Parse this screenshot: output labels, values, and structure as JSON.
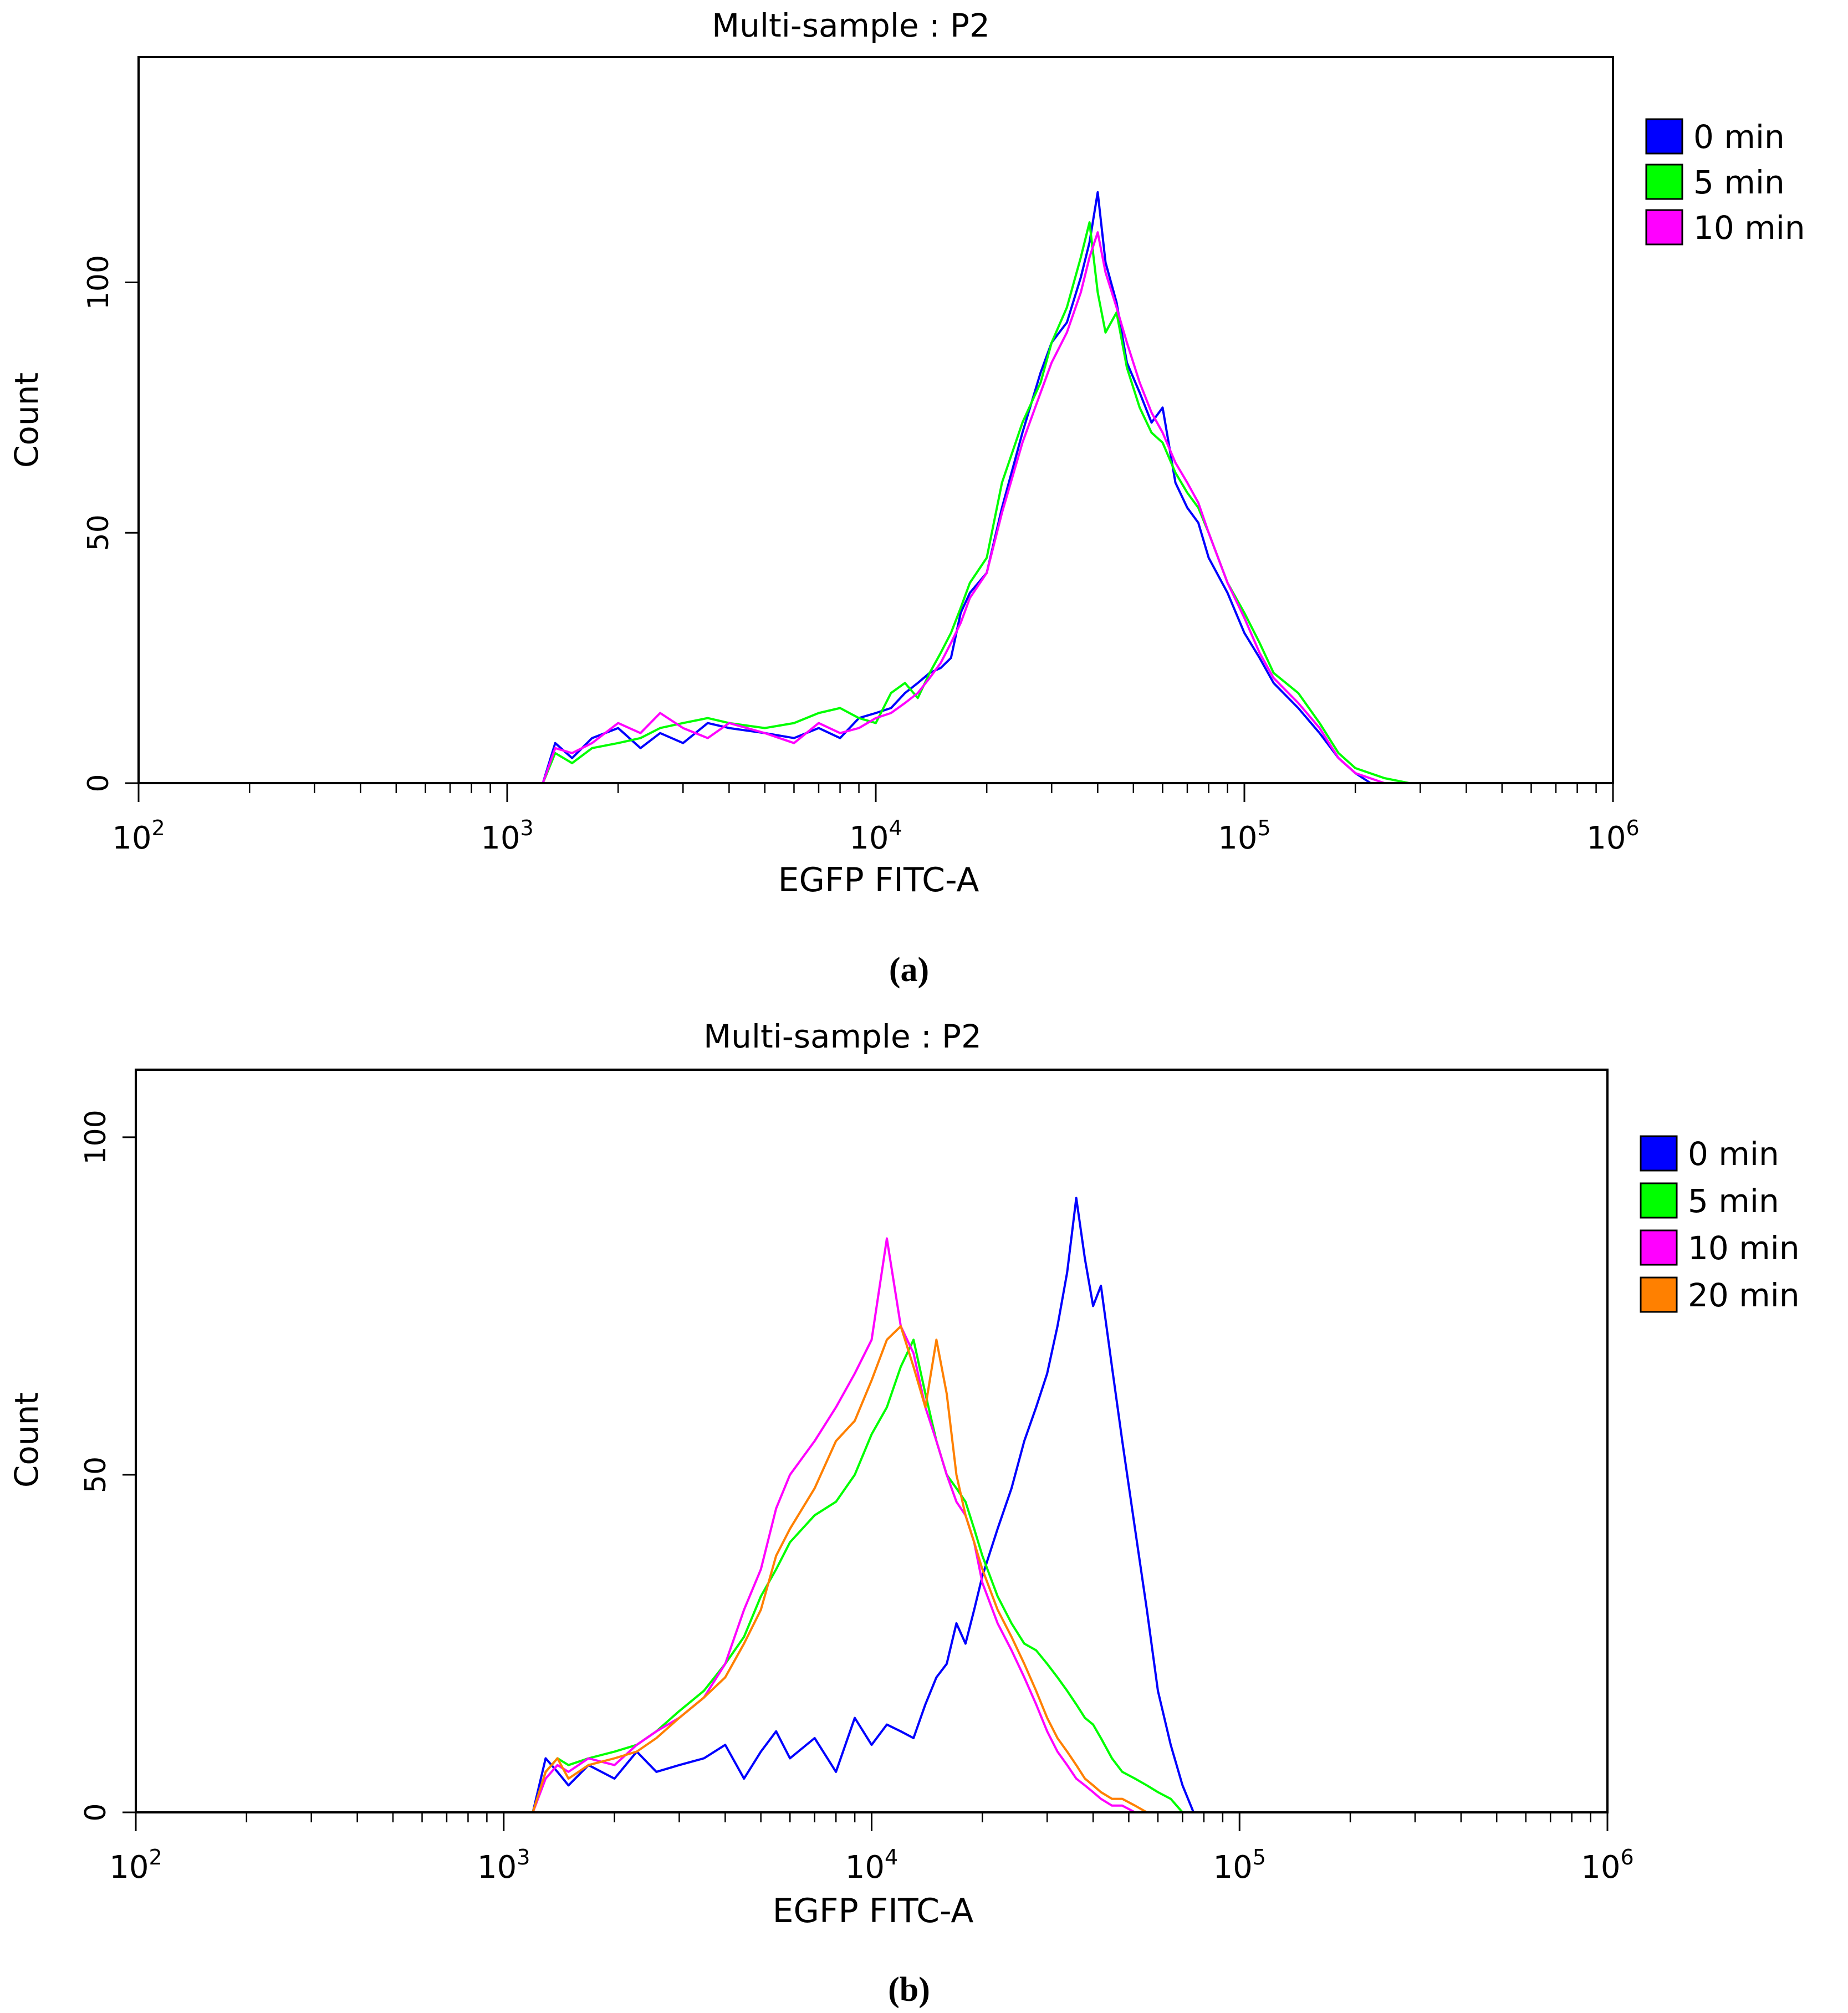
{
  "chart_data": [
    {
      "type": "line",
      "panel_label": "(a)",
      "title": "Multi-sample : P2",
      "xlabel": "EGFP FITC-A",
      "ylabel": "Count",
      "xscale": "log",
      "xlim": [
        100,
        1000000
      ],
      "ylim": [
        0,
        145
      ],
      "xticks": [
        {
          "value": 100,
          "base": "10",
          "exp": "2"
        },
        {
          "value": 1000,
          "base": "10",
          "exp": "3"
        },
        {
          "value": 10000,
          "base": "10",
          "exp": "4"
        },
        {
          "value": 100000,
          "base": "10",
          "exp": "5"
        },
        {
          "value": 1000000,
          "base": "10",
          "exp": "6"
        }
      ],
      "yticks": [
        {
          "value": 0,
          "label": "0"
        },
        {
          "value": 50,
          "label": "50"
        },
        {
          "value": 100,
          "label": "100"
        }
      ],
      "legend": "top-right",
      "series": [
        {
          "name": "0 min",
          "color": "#0000ff",
          "x": [
            1250,
            1350,
            1500,
            1700,
            2000,
            2300,
            2600,
            3000,
            3500,
            4000,
            5000,
            6000,
            7000,
            8000,
            9000,
            10000,
            11000,
            12000,
            13000,
            14000,
            15000,
            16000,
            17000,
            18000,
            20000,
            22000,
            25000,
            28000,
            30000,
            33000,
            36000,
            38000,
            40000,
            42000,
            45000,
            48000,
            52000,
            56000,
            60000,
            65000,
            70000,
            75000,
            80000,
            90000,
            100000,
            110000,
            120000,
            140000,
            160000,
            180000,
            200000,
            220000
          ],
          "y": [
            0,
            8,
            5,
            9,
            11,
            7,
            10,
            8,
            12,
            11,
            10,
            9,
            11,
            9,
            13,
            14,
            15,
            18,
            20,
            22,
            23,
            25,
            34,
            38,
            42,
            55,
            70,
            82,
            88,
            92,
            101,
            108,
            118,
            104,
            96,
            84,
            78,
            72,
            75,
            60,
            55,
            52,
            45,
            38,
            30,
            25,
            20,
            15,
            10,
            5,
            2,
            0
          ]
        },
        {
          "name": "5 min",
          "color": "#00ff00",
          "x": [
            1250,
            1350,
            1500,
            1700,
            2000,
            2300,
            2600,
            3000,
            3500,
            4000,
            5000,
            6000,
            7000,
            8000,
            9000,
            10000,
            11000,
            12000,
            13000,
            14000,
            15000,
            16000,
            17000,
            18000,
            20000,
            22000,
            25000,
            28000,
            30000,
            33000,
            36000,
            38000,
            40000,
            42000,
            45000,
            48000,
            52000,
            56000,
            60000,
            65000,
            70000,
            75000,
            80000,
            90000,
            100000,
            110000,
            120000,
            140000,
            160000,
            180000,
            200000,
            240000,
            280000
          ],
          "y": [
            0,
            6,
            4,
            7,
            8,
            9,
            11,
            12,
            13,
            12,
            11,
            12,
            14,
            15,
            13,
            12,
            18,
            20,
            17,
            22,
            26,
            30,
            35,
            40,
            45,
            60,
            72,
            80,
            88,
            95,
            105,
            112,
            98,
            90,
            94,
            83,
            75,
            70,
            68,
            62,
            58,
            55,
            50,
            40,
            34,
            28,
            22,
            18,
            12,
            6,
            3,
            1,
            0
          ]
        },
        {
          "name": "10 min",
          "color": "#ff00ff",
          "x": [
            1250,
            1350,
            1500,
            1700,
            2000,
            2300,
            2600,
            3000,
            3500,
            4000,
            5000,
            6000,
            7000,
            8000,
            9000,
            10000,
            11000,
            12000,
            13000,
            14000,
            15000,
            16000,
            17000,
            18000,
            20000,
            22000,
            25000,
            28000,
            30000,
            33000,
            36000,
            38000,
            40000,
            42000,
            45000,
            48000,
            52000,
            56000,
            60000,
            65000,
            70000,
            75000,
            80000,
            90000,
            100000,
            110000,
            120000,
            140000,
            160000,
            180000,
            200000,
            240000
          ],
          "y": [
            0,
            7,
            6,
            8,
            12,
            10,
            14,
            11,
            9,
            12,
            10,
            8,
            12,
            10,
            11,
            13,
            14,
            16,
            18,
            21,
            24,
            28,
            32,
            37,
            42,
            54,
            68,
            78,
            84,
            90,
            98,
            105,
            110,
            102,
            95,
            88,
            80,
            74,
            70,
            64,
            60,
            56,
            50,
            40,
            33,
            26,
            21,
            16,
            11,
            5,
            2,
            0
          ]
        }
      ]
    },
    {
      "type": "line",
      "panel_label": "(b)",
      "title": "Multi-sample : P2",
      "xlabel": "EGFP FITC-A",
      "ylabel": "Count",
      "xscale": "log",
      "xlim": [
        100,
        1000000
      ],
      "ylim": [
        0,
        110
      ],
      "xticks": [
        {
          "value": 100,
          "base": "10",
          "exp": "2"
        },
        {
          "value": 1000,
          "base": "10",
          "exp": "3"
        },
        {
          "value": 10000,
          "base": "10",
          "exp": "4"
        },
        {
          "value": 100000,
          "base": "10",
          "exp": "5"
        },
        {
          "value": 1000000,
          "base": "10",
          "exp": "6"
        }
      ],
      "yticks": [
        {
          "value": 0,
          "label": "0"
        },
        {
          "value": 50,
          "label": "50"
        },
        {
          "value": 100,
          "label": "100"
        }
      ],
      "legend": "top-right",
      "series": [
        {
          "name": "0 min",
          "color": "#0000ff",
          "x": [
            1200,
            1300,
            1400,
            1500,
            1700,
            2000,
            2300,
            2600,
            3000,
            3500,
            4000,
            4500,
            5000,
            5500,
            6000,
            7000,
            8000,
            9000,
            10000,
            11000,
            12000,
            13000,
            14000,
            15000,
            16000,
            17000,
            18000,
            19000,
            20000,
            22000,
            24000,
            26000,
            28000,
            30000,
            32000,
            34000,
            36000,
            38000,
            40000,
            42000,
            45000,
            48000,
            52000,
            56000,
            60000,
            65000,
            70000,
            75000
          ],
          "y": [
            0,
            8,
            6,
            4,
            7,
            5,
            9,
            6,
            7,
            8,
            10,
            5,
            9,
            12,
            8,
            11,
            6,
            14,
            10,
            13,
            12,
            11,
            16,
            20,
            22,
            28,
            25,
            30,
            35,
            42,
            48,
            55,
            60,
            65,
            72,
            80,
            91,
            82,
            75,
            78,
            66,
            55,
            42,
            30,
            18,
            10,
            4,
            0
          ]
        },
        {
          "name": "5 min",
          "color": "#00ff00",
          "x": [
            1200,
            1300,
            1400,
            1500,
            1700,
            2000,
            2300,
            2600,
            3000,
            3500,
            4000,
            4500,
            5000,
            5500,
            6000,
            7000,
            8000,
            9000,
            10000,
            11000,
            12000,
            13000,
            14000,
            15000,
            16000,
            17000,
            18000,
            19000,
            20000,
            22000,
            24000,
            26000,
            28000,
            30000,
            32000,
            34000,
            36000,
            38000,
            40000,
            42000,
            45000,
            48000,
            52000,
            56000,
            60000,
            65000,
            70000
          ],
          "y": [
            0,
            6,
            8,
            7,
            8,
            9,
            10,
            12,
            15,
            18,
            22,
            26,
            32,
            36,
            40,
            44,
            46,
            50,
            56,
            60,
            66,
            70,
            62,
            55,
            50,
            48,
            46,
            42,
            38,
            32,
            28,
            25,
            24,
            22,
            20,
            18,
            16,
            14,
            13,
            11,
            8,
            6,
            5,
            4,
            3,
            2,
            0
          ]
        },
        {
          "name": "10 min",
          "color": "#ff00ff",
          "x": [
            1200,
            1300,
            1400,
            1500,
            1700,
            2000,
            2300,
            2600,
            3000,
            3500,
            4000,
            4500,
            5000,
            5500,
            6000,
            7000,
            8000,
            9000,
            10000,
            11000,
            12000,
            13000,
            14000,
            15000,
            16000,
            17000,
            18000,
            19000,
            20000,
            22000,
            24000,
            26000,
            28000,
            30000,
            32000,
            34000,
            36000,
            38000,
            40000,
            42000,
            45000,
            48000,
            52000
          ],
          "y": [
            0,
            5,
            7,
            6,
            8,
            7,
            10,
            12,
            14,
            17,
            22,
            30,
            36,
            45,
            50,
            55,
            60,
            65,
            70,
            85,
            72,
            68,
            60,
            55,
            50,
            46,
            44,
            40,
            34,
            28,
            24,
            20,
            16,
            12,
            9,
            7,
            5,
            4,
            3,
            2,
            1,
            1,
            0
          ]
        },
        {
          "name": "20 min",
          "color": "#ff8000",
          "x": [
            1200,
            1300,
            1400,
            1500,
            1700,
            2000,
            2300,
            2600,
            3000,
            3500,
            4000,
            4500,
            5000,
            5500,
            6000,
            7000,
            8000,
            9000,
            10000,
            11000,
            12000,
            13000,
            14000,
            15000,
            16000,
            17000,
            18000,
            19000,
            20000,
            22000,
            24000,
            26000,
            28000,
            30000,
            32000,
            34000,
            36000,
            38000,
            40000,
            42000,
            45000,
            48000,
            52000,
            56000,
            60000
          ],
          "y": [
            0,
            6,
            8,
            5,
            7,
            8,
            9,
            11,
            14,
            17,
            20,
            25,
            30,
            38,
            42,
            48,
            55,
            58,
            64,
            70,
            72,
            66,
            60,
            70,
            62,
            50,
            44,
            40,
            36,
            30,
            26,
            22,
            18,
            14,
            11,
            9,
            7,
            5,
            4,
            3,
            2,
            2,
            1,
            0,
            0
          ]
        }
      ]
    }
  ]
}
